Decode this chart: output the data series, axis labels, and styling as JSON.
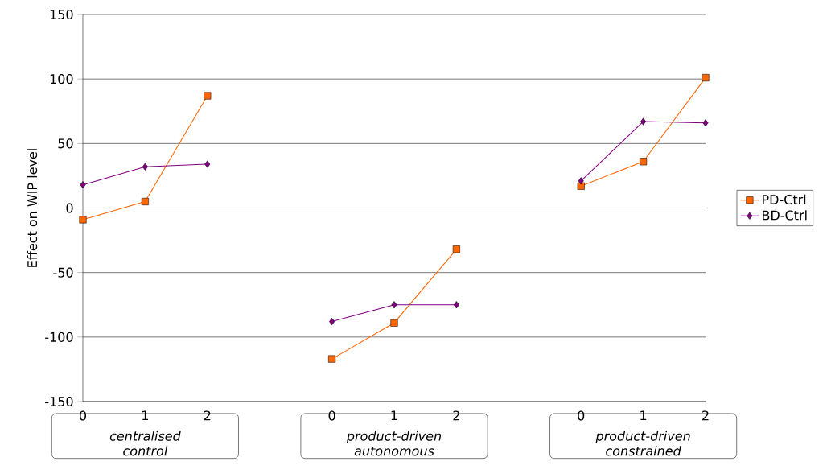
{
  "chart_data": {
    "type": "line",
    "ylabel": "Effect on WIP level",
    "categories": [
      "0",
      "1",
      "2",
      null,
      "0",
      "1",
      "2",
      null,
      "0",
      "1",
      "2"
    ],
    "series": [
      {
        "name": "PD-Ctrl",
        "color": "#ff6600",
        "marker": "square",
        "values": [
          -9,
          5,
          87,
          null,
          -117,
          -89,
          -32,
          null,
          17,
          36,
          101
        ]
      },
      {
        "name": "BD-Ctrl",
        "color": "#800080",
        "marker": "diamond",
        "values": [
          18,
          32,
          34,
          null,
          -88,
          -75,
          -75,
          null,
          21,
          67,
          66
        ]
      }
    ],
    "ylim": [
      -150,
      150
    ],
    "yticks": [
      -150,
      -100,
      -50,
      0,
      50,
      100,
      150
    ],
    "grid": "y",
    "legend": "right",
    "annotations": [
      "centralised control",
      "product-driven autonomous",
      "product-driven constrained"
    ]
  }
}
